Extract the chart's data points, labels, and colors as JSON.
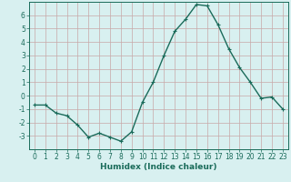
{
  "x": [
    0,
    1,
    2,
    3,
    4,
    5,
    6,
    7,
    8,
    9,
    10,
    11,
    12,
    13,
    14,
    15,
    16,
    17,
    18,
    19,
    20,
    21,
    22,
    23
  ],
  "y": [
    -0.7,
    -0.7,
    -1.3,
    -1.5,
    -2.2,
    -3.1,
    -2.8,
    -3.1,
    -3.4,
    -2.7,
    -0.5,
    1.0,
    3.0,
    4.8,
    5.7,
    6.8,
    6.7,
    5.3,
    3.5,
    2.1,
    1.0,
    -0.2,
    -0.1,
    -1.0
  ],
  "line_color": "#1a6b5a",
  "marker": "+",
  "markersize": 3,
  "linewidth": 1.0,
  "xlabel": "Humidex (Indice chaleur)",
  "xlim": [
    -0.5,
    23.5
  ],
  "ylim": [
    -4,
    7
  ],
  "yticks": [
    -3,
    -2,
    -1,
    0,
    1,
    2,
    3,
    4,
    5,
    6
  ],
  "xticks": [
    0,
    1,
    2,
    3,
    4,
    5,
    6,
    7,
    8,
    9,
    10,
    11,
    12,
    13,
    14,
    15,
    16,
    17,
    18,
    19,
    20,
    21,
    22,
    23
  ],
  "bg_color": "#d8f0f0",
  "grid_color": "#c8a8a8",
  "tick_fontsize": 5.5,
  "xlabel_fontsize": 6.5,
  "axis_color": "#1a6b5a"
}
